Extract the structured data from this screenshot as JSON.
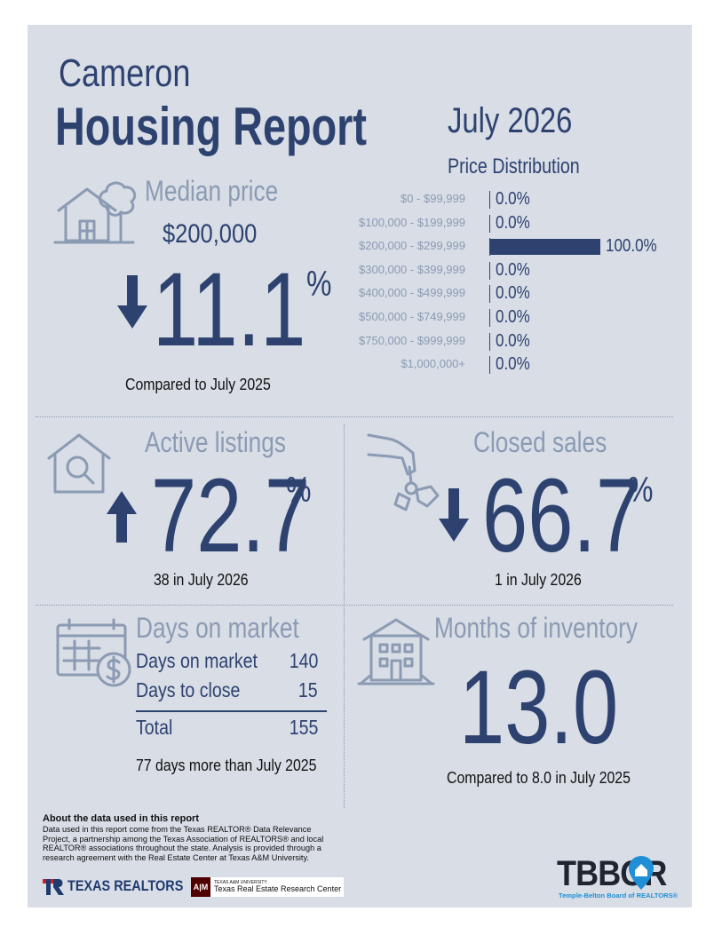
{
  "header": {
    "city": "Cameron",
    "title": "Housing Report",
    "month": "July 2026"
  },
  "median_price": {
    "label": "Median price",
    "value": "$200,000",
    "direction": "down",
    "change": "11.1",
    "percent_sign": "%",
    "comparison": "Compared to July 2025"
  },
  "price_distribution": {
    "title": "Price Distribution",
    "rows": [
      {
        "range": "$0 - $99,999",
        "value_label": "0.0%",
        "value": 0.0
      },
      {
        "range": "$100,000 - $199,999",
        "value_label": "0.0%",
        "value": 0.0
      },
      {
        "range": "$200,000 - $299,999",
        "value_label": "100.0%",
        "value": 100.0
      },
      {
        "range": "$300,000 - $399,999",
        "value_label": "0.0%",
        "value": 0.0
      },
      {
        "range": "$400,000 - $499,999",
        "value_label": "0.0%",
        "value": 0.0
      },
      {
        "range": "$500,000 - $749,999",
        "value_label": "0.0%",
        "value": 0.0
      },
      {
        "range": "$750,000 - $999,999",
        "value_label": "0.0%",
        "value": 0.0
      },
      {
        "range": "$1,000,000+",
        "value_label": "0.0%",
        "value": 0.0
      }
    ]
  },
  "active_listings": {
    "label": "Active listings",
    "direction": "up",
    "change": "72.7",
    "percent_sign": "%",
    "detail": "38 in July 2026"
  },
  "closed_sales": {
    "label": "Closed sales",
    "direction": "down",
    "change": "66.7",
    "percent_sign": "%",
    "detail": "1 in July 2026"
  },
  "days_on_market": {
    "label": "Days on market",
    "rows": [
      {
        "name": "Days on market",
        "value": "140"
      },
      {
        "name": "Days to close",
        "value": "15"
      }
    ],
    "total_label": "Total",
    "total_value": "155",
    "comparison": "77 days more than July 2025"
  },
  "months_of_inventory": {
    "label": "Months of inventory",
    "value": "13.0",
    "comparison": "Compared to 8.0 in July 2025"
  },
  "about": {
    "heading": "About the data used in this report",
    "body": "Data used in this report come from the Texas REALTOR® Data Relevance Project, a partnership among the Texas Association of REALTORS® and local REALTOR® associations throughout the state. Analysis is provided through a research agreement with the Real Estate Center at Texas A&M University."
  },
  "logos": {
    "texas_realtors": "TEXAS REALTORS",
    "tamu_small": "TEXAS A&M UNIVERSITY",
    "tamu_center": "Texas Real Estate Research Center",
    "tbbor": "TBBOR",
    "tbbor_sub": "Temple-Belton Board of REALTORS®"
  },
  "colors": {
    "navy": "#2e4270",
    "grey_blue": "#8b9bb3",
    "background": "#d8dde6",
    "tbbor_blue": "#1f8fd6"
  }
}
